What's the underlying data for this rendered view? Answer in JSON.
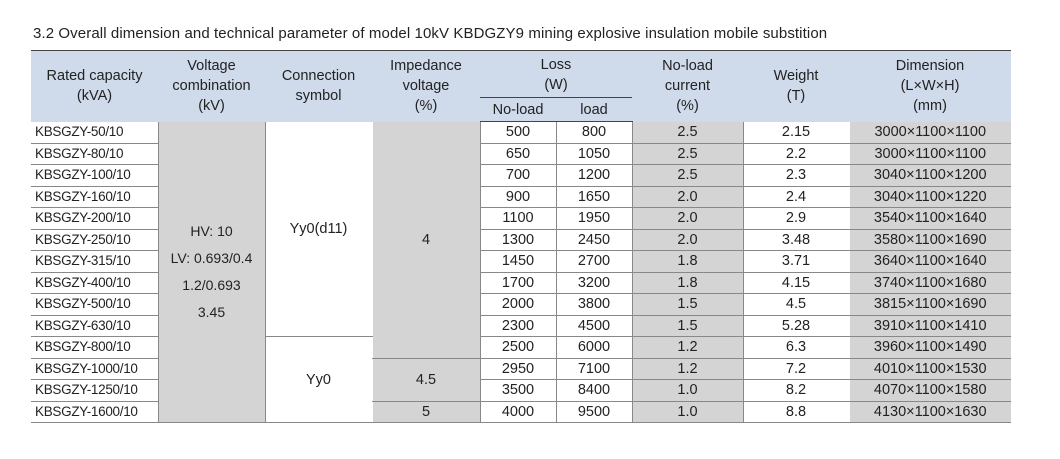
{
  "title": "3.2 Overall dimension and technical parameter of model 10kV KBDGZY9 mining explosive insulation mobile substition",
  "headers": {
    "rated_capacity": [
      "Rated capacity",
      "(kVA)"
    ],
    "voltage_combination": [
      "Voltage",
      "combination",
      "(kV)"
    ],
    "connection_symbol": [
      "Connection",
      "symbol"
    ],
    "impedance_voltage": [
      "Impedance",
      "voltage",
      "(%)"
    ],
    "loss": [
      "Loss",
      "(W)"
    ],
    "loss_noload": "No-load",
    "loss_load": "load",
    "noload_current": [
      "No-load",
      "current",
      "(%)"
    ],
    "weight": [
      "Weight",
      "(T)"
    ],
    "dimension": [
      "Dimension",
      "(L×W×H)",
      "(mm)"
    ]
  },
  "voltage_combination_values": [
    "HV: 10",
    "LV: 0.693/0.4",
    "1.2/0.693",
    "3.45"
  ],
  "connection_values": [
    "Yy0(d11)",
    "Yy0"
  ],
  "impedance_values": [
    "4",
    "4.5",
    "5"
  ],
  "rows": [
    {
      "model": "KBSGZY-50/10",
      "noload_loss": "500",
      "load_loss": "800",
      "current": "2.5",
      "weight": "2.15",
      "dimension": "3000×1100×1100"
    },
    {
      "model": "KBSGZY-80/10",
      "noload_loss": "650",
      "load_loss": "1050",
      "current": "2.5",
      "weight": "2.2",
      "dimension": "3000×1100×1100"
    },
    {
      "model": "KBSGZY-100/10",
      "noload_loss": "700",
      "load_loss": "1200",
      "current": "2.5",
      "weight": "2.3",
      "dimension": "3040×1100×1200"
    },
    {
      "model": "KBSGZY-160/10",
      "noload_loss": "900",
      "load_loss": "1650",
      "current": "2.0",
      "weight": "2.4",
      "dimension": "3040×1100×1220"
    },
    {
      "model": "KBSGZY-200/10",
      "noload_loss": "1100",
      "load_loss": "1950",
      "current": "2.0",
      "weight": "2.9",
      "dimension": "3540×1100×1640"
    },
    {
      "model": "KBSGZY-250/10",
      "noload_loss": "1300",
      "load_loss": "2450",
      "current": "2.0",
      "weight": "3.48",
      "dimension": "3580×1100×1690"
    },
    {
      "model": "KBSGZY-315/10",
      "noload_loss": "1450",
      "load_loss": "2700",
      "current": "1.8",
      "weight": "3.71",
      "dimension": "3640×1100×1640"
    },
    {
      "model": "KBSGZY-400/10",
      "noload_loss": "1700",
      "load_loss": "3200",
      "current": "1.8",
      "weight": "4.15",
      "dimension": "3740×1100×1680"
    },
    {
      "model": "KBSGZY-500/10",
      "noload_loss": "2000",
      "load_loss": "3800",
      "current": "1.5",
      "weight": "4.5",
      "dimension": "3815×1100×1690"
    },
    {
      "model": "KBSGZY-630/10",
      "noload_loss": "2300",
      "load_loss": "4500",
      "current": "1.5",
      "weight": "5.28",
      "dimension": "3910×1100×1410"
    },
    {
      "model": "KBSGZY-800/10",
      "noload_loss": "2500",
      "load_loss": "6000",
      "current": "1.2",
      "weight": "6.3",
      "dimension": "3960×1100×1490"
    },
    {
      "model": "KBSGZY-1000/10",
      "noload_loss": "2950",
      "load_loss": "7100",
      "current": "1.2",
      "weight": "7.2",
      "dimension": "4010×1100×1530"
    },
    {
      "model": "KBSGZY-1250/10",
      "noload_loss": "3500",
      "load_loss": "8400",
      "current": "1.0",
      "weight": "8.2",
      "dimension": "4070×1100×1580"
    },
    {
      "model": "KBSGZY-1600/10",
      "noload_loss": "4000",
      "load_loss": "9500",
      "current": "1.0",
      "weight": "8.8",
      "dimension": "4130×1100×1630"
    }
  ]
}
